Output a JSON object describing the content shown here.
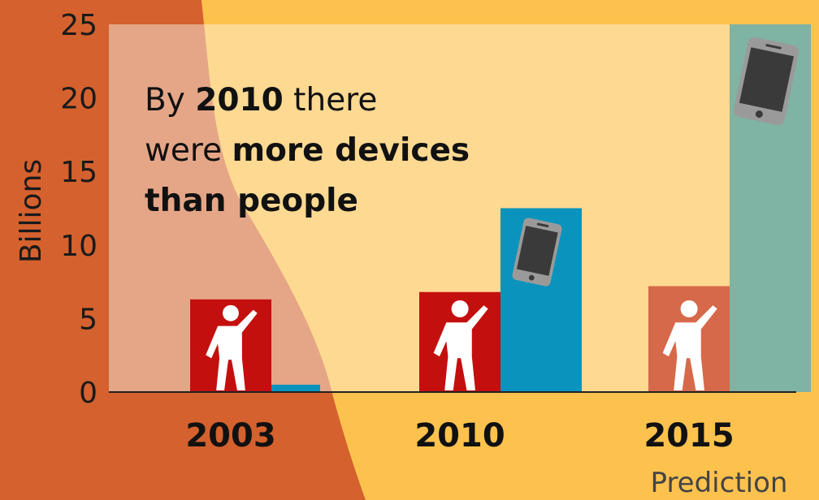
{
  "chart_data": {
    "type": "bar",
    "categories": [
      "2003",
      "2010",
      "2015"
    ],
    "category_note": "Prediction",
    "series": [
      {
        "values": [
          6.3,
          6.8,
          7.2
        ],
        "colors": [
          "#c40f0f",
          "#c40f0f",
          "#d6694a"
        ],
        "icon": "person-icon"
      },
      {
        "values": [
          0.5,
          12.5,
          25
        ],
        "colors": [
          "#0a93bc",
          "#0a93bc",
          "#7fb3a3"
        ],
        "icon": "smartphone-icon"
      }
    ],
    "ylabel": "Billions",
    "ylim": [
      0,
      25
    ],
    "yticks": [
      0,
      5,
      10,
      15,
      20,
      25
    ],
    "annotation": {
      "line1": [
        "By ",
        "2010",
        " there"
      ],
      "line2": [
        "were ",
        "more devices"
      ],
      "line3": "than people"
    },
    "colors": {
      "background_left": "#d4612e",
      "background_right": "#fdc24e",
      "plot_left": "#e5a688",
      "plot_right": "#fed992"
    }
  }
}
